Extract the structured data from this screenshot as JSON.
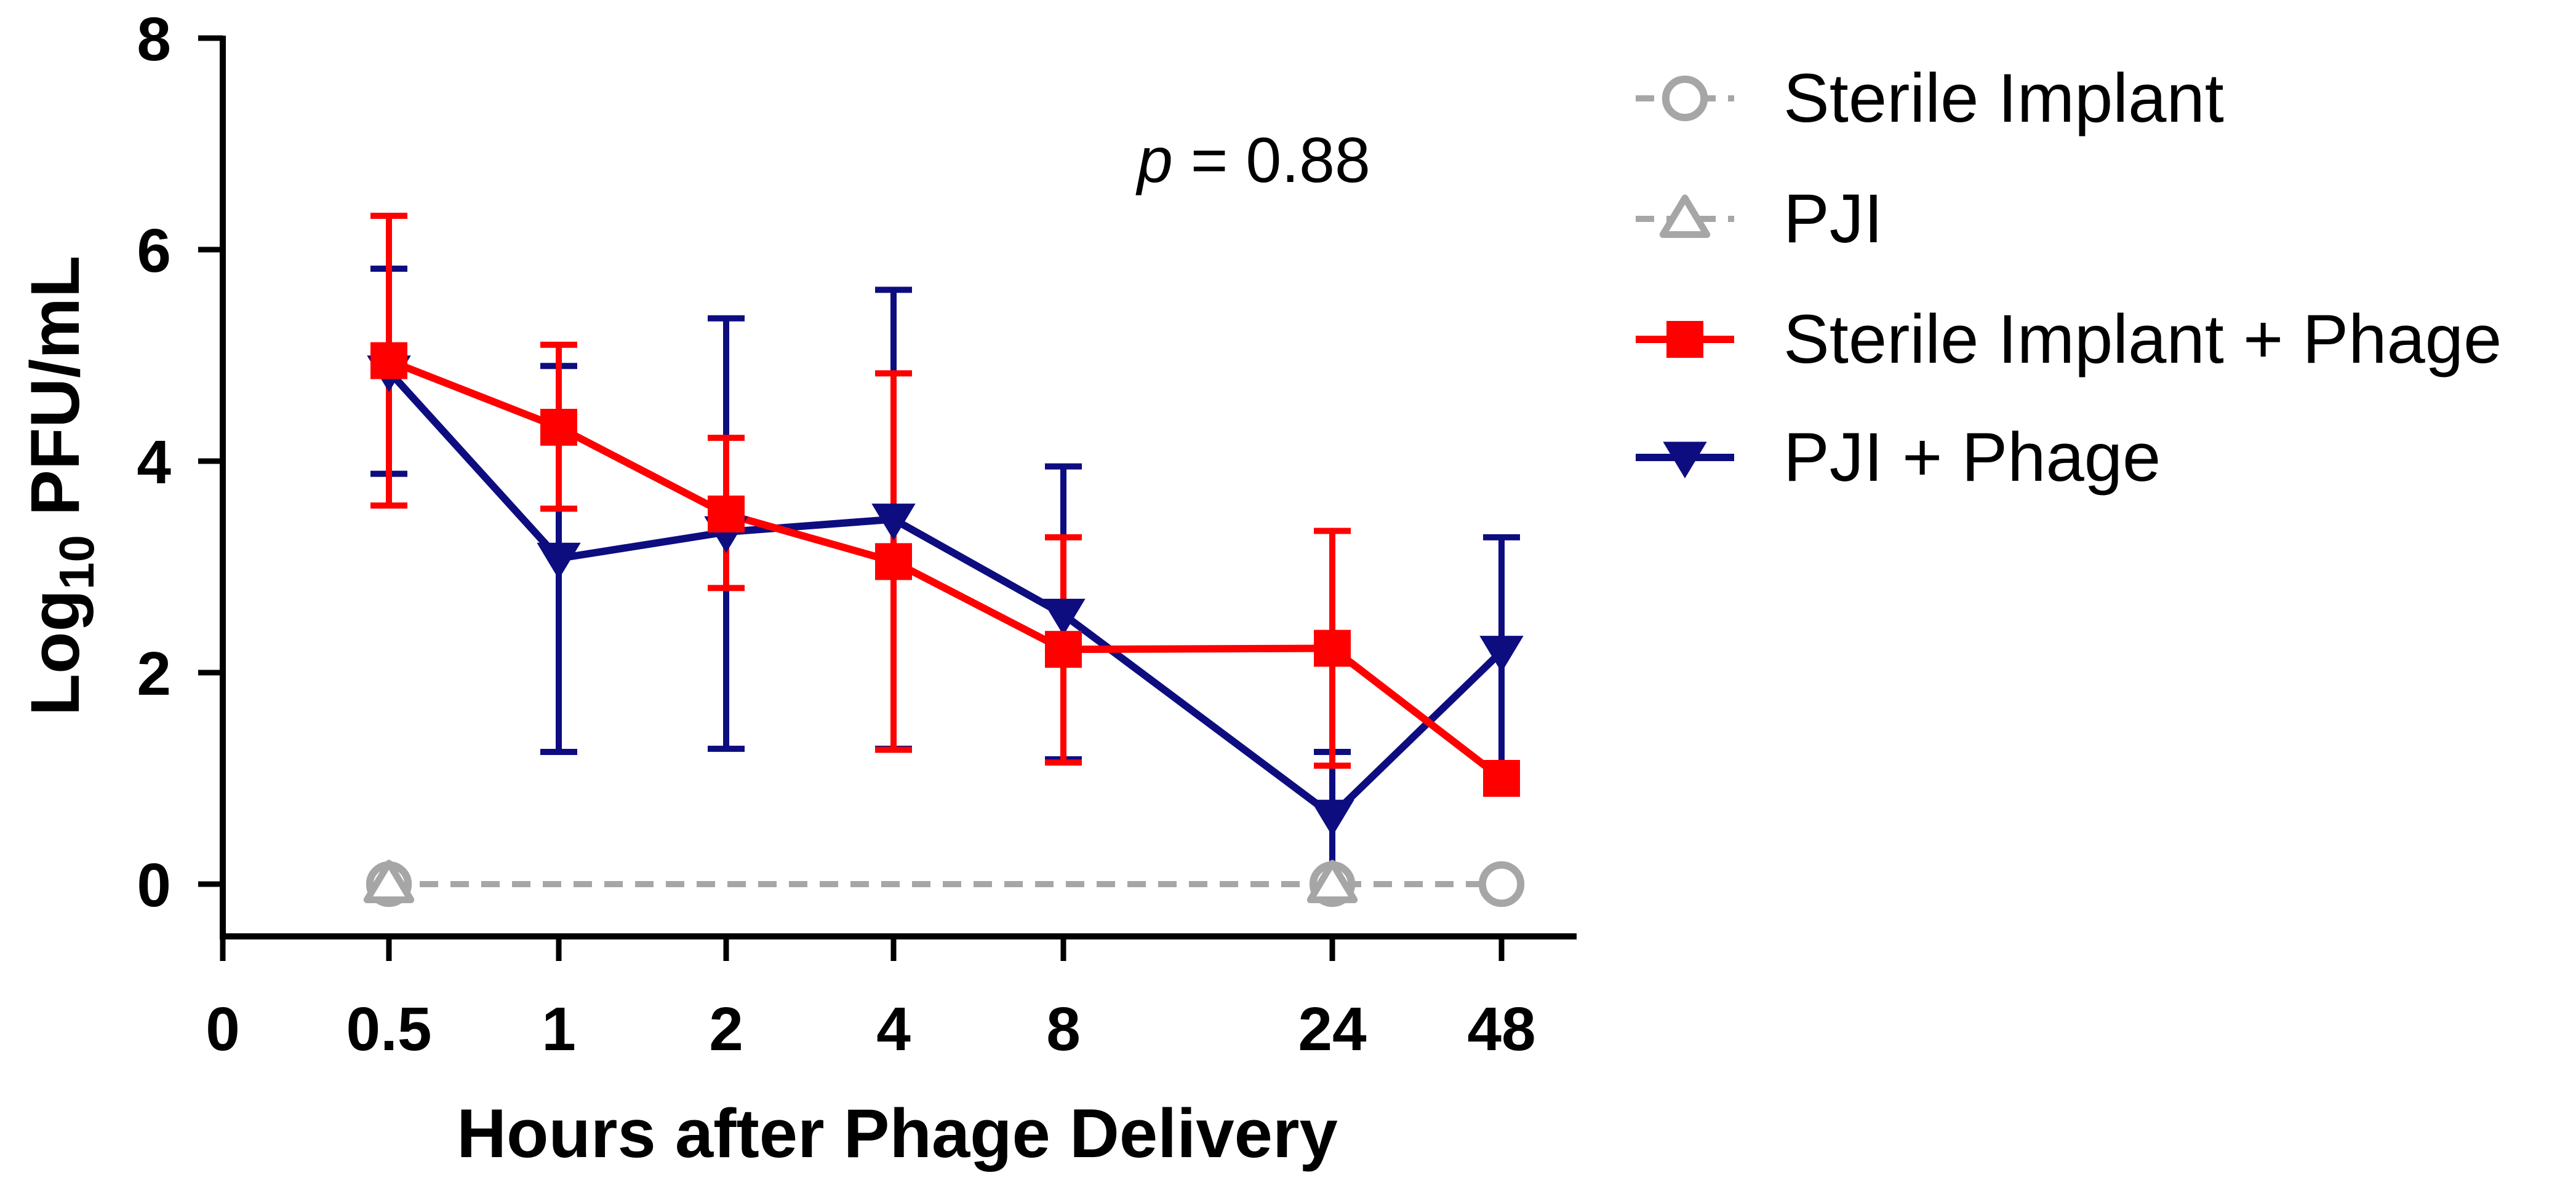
{
  "chart_data": {
    "type": "line",
    "title": "",
    "xlabel": "Hours after Phage Delivery",
    "ylabel_prefix": "Log",
    "ylabel_sub": "10",
    "ylabel_suffix": " PFU/mL",
    "x_tick_labels": [
      "0",
      "0.5",
      "1",
      "2",
      "4",
      "8",
      "24",
      "48"
    ],
    "y_ticks": [
      0,
      2,
      4,
      6,
      8
    ],
    "ylim": [
      -0.5,
      8
    ],
    "annotation": {
      "p_symbol": "p",
      "text": " = 0.88"
    },
    "series": [
      {
        "name": "Sterile Implant",
        "color": "#a6a6a6",
        "marker": "circle",
        "line": "dashed",
        "points": [
          {
            "x": "0.5",
            "y": 0
          },
          {
            "x": "24",
            "y": 0
          },
          {
            "x": "48",
            "y": 0
          }
        ]
      },
      {
        "name": "PJI",
        "color": "#a6a6a6",
        "marker": "triangle-up",
        "line": "dashed",
        "points": [
          {
            "x": "0.5",
            "y": 0
          },
          {
            "x": "24",
            "y": 0
          }
        ]
      },
      {
        "name": "Sterile Implant + Phage",
        "color": "#ff0000",
        "marker": "square",
        "line": "solid",
        "points": [
          {
            "x": "0.5",
            "y": 4.95,
            "err_low": 3.58,
            "err_high": 6.32
          },
          {
            "x": "1",
            "y": 4.32,
            "err_low": 3.55,
            "err_high": 5.1
          },
          {
            "x": "2",
            "y": 3.5,
            "err_low": 2.8,
            "err_high": 4.22
          },
          {
            "x": "4",
            "y": 3.05,
            "err_low": 1.27,
            "err_high": 4.83
          },
          {
            "x": "8",
            "y": 2.22,
            "err_low": 1.15,
            "err_high": 3.28
          },
          {
            "x": "24",
            "y": 2.23,
            "err_low": 1.12,
            "err_high": 3.34
          },
          {
            "x": "48",
            "y": 1.0
          }
        ]
      },
      {
        "name": "PJI + Phage",
        "color": "#0d0d80",
        "marker": "triangle-down",
        "line": "solid",
        "points": [
          {
            "x": "0.5",
            "y": 4.85,
            "err_low": 3.88,
            "err_high": 5.82
          },
          {
            "x": "1",
            "y": 3.08,
            "err_low": 1.25,
            "err_high": 4.9
          },
          {
            "x": "2",
            "y": 3.33,
            "err_low": 1.28,
            "err_high": 5.35
          },
          {
            "x": "4",
            "y": 3.45,
            "err_low": 1.28,
            "err_high": 5.62
          },
          {
            "x": "8",
            "y": 2.55,
            "err_low": 1.18,
            "err_high": 3.95
          },
          {
            "x": "24",
            "y": 0.65,
            "err_low": 0.05,
            "err_high": 1.25
          },
          {
            "x": "48",
            "y": 2.2,
            "err_low": 1.12,
            "err_high": 3.28
          }
        ]
      }
    ]
  }
}
